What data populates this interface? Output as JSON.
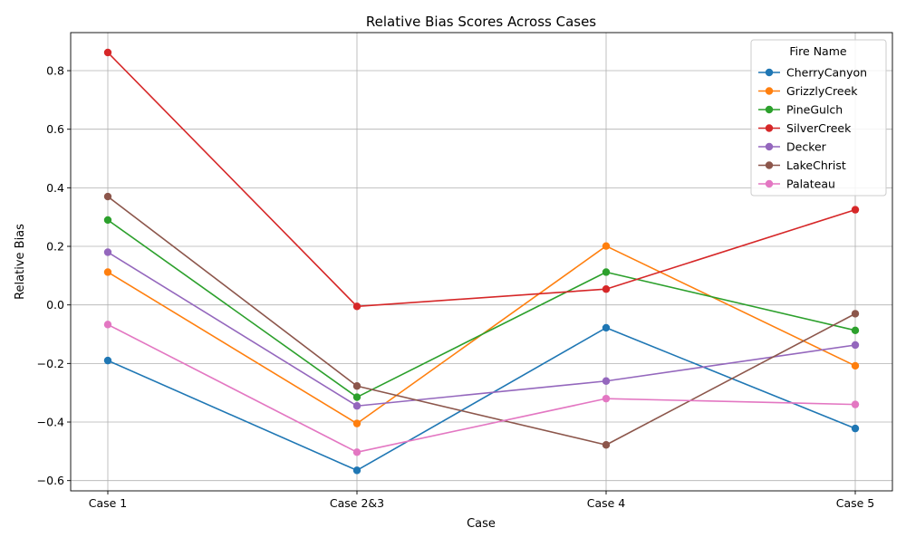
{
  "chart_data": {
    "type": "line",
    "title": "Relative Bias Scores Across Cases",
    "xlabel": "Case",
    "ylabel": "Relative Bias",
    "categories": [
      "Case 1",
      "Case 2&3",
      "Case 4",
      "Case 5"
    ],
    "ylim": [
      -0.635,
      0.93
    ],
    "yticks": [
      -0.6,
      -0.4,
      -0.2,
      0.0,
      0.2,
      0.4,
      0.6,
      0.8
    ],
    "ytick_labels": [
      "−0.6",
      "−0.4",
      "−0.2",
      "0.0",
      "0.2",
      "0.4",
      "0.6",
      "0.8"
    ],
    "grid": true,
    "legend": {
      "title": "Fire Name",
      "placement": "top-right"
    },
    "series": [
      {
        "name": "CherryCanyon",
        "color": "#1f77b4",
        "values": [
          -0.19,
          -0.565,
          -0.078,
          -0.422
        ]
      },
      {
        "name": "GrizzlyCreek",
        "color": "#ff7f0e",
        "values": [
          0.112,
          -0.405,
          0.201,
          -0.208
        ]
      },
      {
        "name": "PineGulch",
        "color": "#2ca02c",
        "values": [
          0.29,
          -0.315,
          0.112,
          -0.087
        ]
      },
      {
        "name": "SilverCreek",
        "color": "#d62728",
        "values": [
          0.862,
          -0.005,
          0.054,
          0.325
        ]
      },
      {
        "name": "Decker",
        "color": "#9467bd",
        "values": [
          0.18,
          -0.345,
          -0.26,
          -0.137
        ]
      },
      {
        "name": "LakeChrist",
        "color": "#8c564b",
        "values": [
          0.37,
          -0.277,
          -0.478,
          -0.03
        ]
      },
      {
        "name": "Palateau",
        "color": "#e377c2",
        "values": [
          -0.067,
          -0.503,
          -0.32,
          -0.34
        ]
      }
    ]
  }
}
